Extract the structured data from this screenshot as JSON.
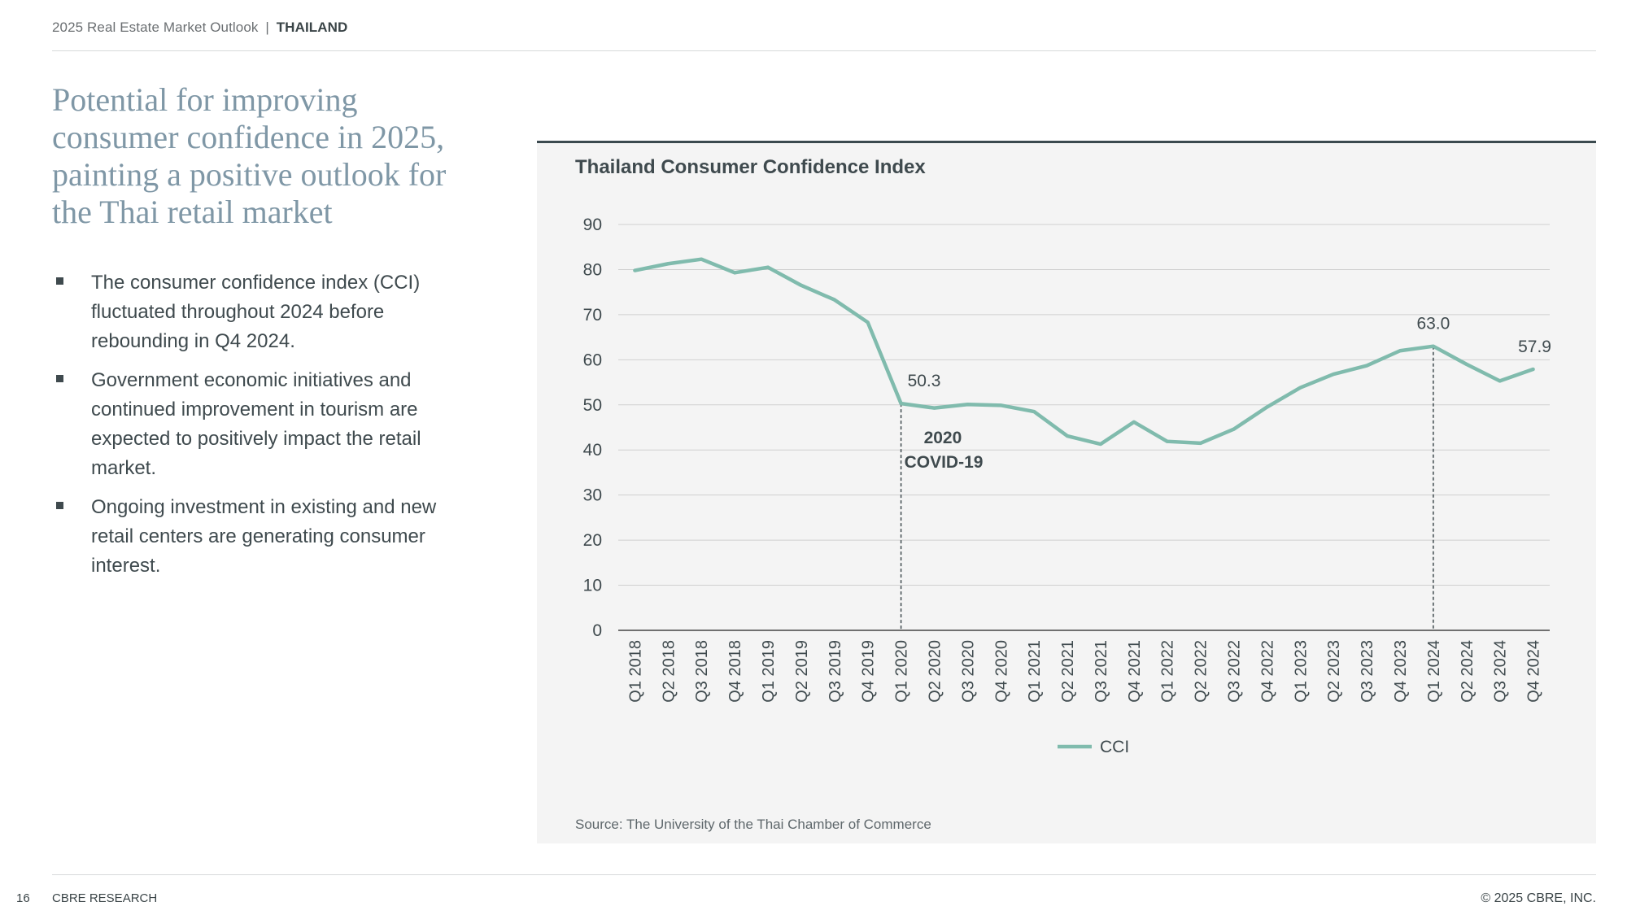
{
  "header": {
    "report": "2025 Real Estate Market Outlook",
    "separator": "|",
    "country": "THAILAND"
  },
  "headline": "Potential for improving consumer confidence in 2025, painting a positive outlook for the Thai retail market",
  "bullets": [
    "The consumer confidence index (CCI) fluctuated throughout 2024 before rebounding in Q4 2024.",
    "Government economic initiatives and continued improvement in tourism are expected to positively impact the retail market.",
    "Ongoing investment in existing and new retail centers are generating consumer interest."
  ],
  "chart_data": {
    "type": "line",
    "title": "Thailand Consumer Confidence Index",
    "categories": [
      "Q1 2018",
      "Q2 2018",
      "Q3 2018",
      "Q4 2018",
      "Q1 2019",
      "Q2 2019",
      "Q3 2019",
      "Q4 2019",
      "Q1 2020",
      "Q2 2020",
      "Q3 2020",
      "Q4 2020",
      "Q1 2021",
      "Q2 2021",
      "Q3 2021",
      "Q4 2021",
      "Q1 2022",
      "Q2 2022",
      "Q3 2022",
      "Q4 2022",
      "Q1 2023",
      "Q2 2023",
      "Q3 2023",
      "Q4 2023",
      "Q1 2024",
      "Q2 2024",
      "Q3 2024",
      "Q4 2024"
    ],
    "series": [
      {
        "name": "CCI",
        "color": "#80bbad",
        "values": [
          79.8,
          81.3,
          82.3,
          79.3,
          80.5,
          76.5,
          73.3,
          68.3,
          50.3,
          49.3,
          50.1,
          49.9,
          48.5,
          43.1,
          41.3,
          46.2,
          41.9,
          41.5,
          44.6,
          49.5,
          53.8,
          56.8,
          58.7,
          62.0,
          63.0,
          59.0,
          55.3,
          57.9
        ]
      }
    ],
    "yticks": [
      0,
      10,
      20,
      30,
      40,
      50,
      60,
      70,
      80,
      90
    ],
    "ylim": [
      0,
      90
    ],
    "grid": true,
    "legend_position": "bottom",
    "data_labels": [
      {
        "category": "Q1 2020",
        "text": "50.3"
      },
      {
        "category": "Q1 2024",
        "text": "63.0"
      },
      {
        "category": "Q4 2024",
        "text": "57.9"
      }
    ],
    "annotations": [
      {
        "category": "Q1 2020",
        "line1": "2020",
        "line2": "COVID-19",
        "style": "dashed-vertical-line"
      },
      {
        "category": "Q1 2024",
        "style": "dashed-vertical-line"
      }
    ],
    "xlabel": "",
    "ylabel": ""
  },
  "source": "Source: The University of the Thai Chamber of Commerce",
  "footer": {
    "page": "16",
    "left": "CBRE RESEARCH",
    "right": "© 2025 CBRE, INC."
  }
}
